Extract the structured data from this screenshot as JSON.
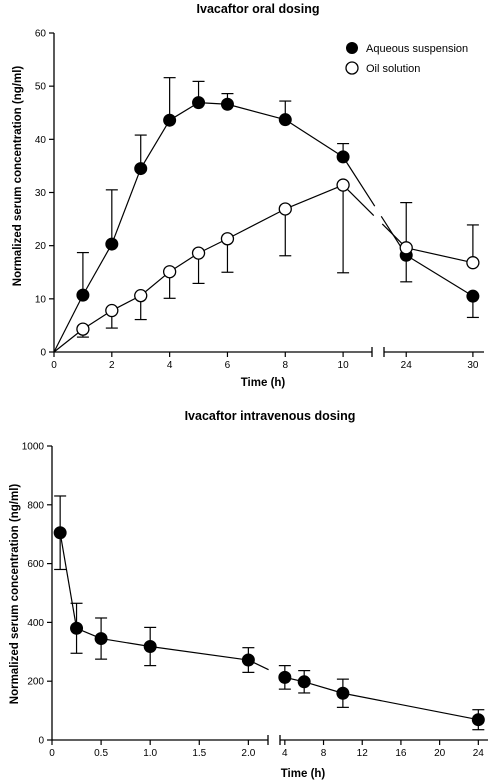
{
  "chart_data": [
    {
      "type": "line",
      "title": "Ivacaftor oral dosing",
      "xlabel": "Time (h)",
      "ylabel": "Normalized serum concentration (ng/ml)",
      "ylim": [
        0,
        60
      ],
      "y_ticks": [
        "0",
        "10",
        "20",
        "30",
        "40",
        "50",
        "60"
      ],
      "x_segments": [
        {
          "range": [
            0,
            11
          ],
          "ticks": [
            0,
            2,
            4,
            6,
            8,
            10
          ]
        },
        {
          "range": [
            22,
            31
          ],
          "ticks": [
            24,
            30
          ]
        }
      ],
      "x_tick_labels": [
        "0",
        "2",
        "4",
        "6",
        "8",
        "10",
        "24",
        "30"
      ],
      "legend_position": "top-right",
      "grid": false,
      "series": [
        {
          "name": "Aqueous suspension",
          "marker": "filled-circle",
          "x": [
            0,
            1,
            2,
            3,
            4,
            5,
            6,
            8,
            10,
            24,
            30
          ],
          "y": [
            0,
            10.7,
            20.3,
            34.5,
            43.6,
            46.9,
            46.6,
            43.7,
            36.7,
            18.2,
            10.5
          ],
          "err_up": [
            0,
            8.0,
            10.2,
            6.3,
            8.0,
            4.0,
            2.0,
            3.5,
            2.5,
            null,
            null
          ],
          "err_down": [
            0,
            null,
            null,
            null,
            null,
            null,
            null,
            null,
            null,
            5.0,
            4.0
          ]
        },
        {
          "name": "Oil solution",
          "marker": "open-circle",
          "x": [
            0,
            1,
            2,
            3,
            4,
            5,
            6,
            8,
            10,
            24,
            30
          ],
          "y": [
            0,
            4.3,
            7.8,
            10.6,
            15.1,
            18.6,
            21.3,
            26.9,
            31.4,
            19.6,
            16.8
          ],
          "err_up": [
            0,
            null,
            null,
            null,
            null,
            null,
            null,
            null,
            null,
            8.5,
            7.1
          ],
          "err_down": [
            0,
            1.5,
            3.3,
            4.5,
            5.0,
            5.7,
            6.3,
            8.8,
            16.5,
            null,
            null
          ]
        }
      ]
    },
    {
      "type": "line",
      "title": "Ivacaftor intravenous dosing",
      "xlabel": "Time (h)",
      "ylabel": "Normalized serum concentration (ng/ml)",
      "ylim": [
        0,
        1000
      ],
      "y_ticks": [
        "0",
        "200",
        "400",
        "600",
        "800",
        "1000"
      ],
      "x_segments": [
        {
          "range": [
            0,
            2.2
          ],
          "ticks": [
            0,
            0.5,
            1.0,
            1.5,
            2.0
          ]
        },
        {
          "range": [
            3.5,
            25
          ],
          "ticks": [
            4,
            8,
            12,
            16,
            20,
            24
          ]
        }
      ],
      "x_tick_labels": [
        "0",
        "0.5",
        "1.0",
        "1.5",
        "2.0",
        "4",
        "8",
        "12",
        "16",
        "20",
        "24"
      ],
      "grid": false,
      "series": [
        {
          "marker": "filled-circle",
          "x": [
            0.083,
            0.25,
            0.5,
            1.0,
            2.0,
            4,
            6,
            10,
            24
          ],
          "y": [
            705,
            380,
            345,
            318,
            272,
            213,
            198,
            159,
            69
          ],
          "err": [
            125,
            85,
            70,
            65,
            42,
            40,
            38,
            48,
            34
          ]
        }
      ]
    }
  ]
}
